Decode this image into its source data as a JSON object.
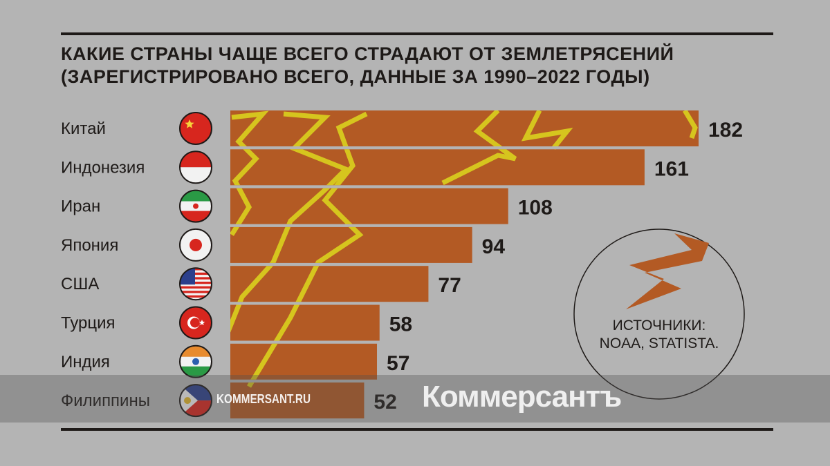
{
  "chart_data": {
    "type": "bar",
    "orientation": "horizontal",
    "title": "Какие страны чаще всего страдают от землетрясений (зарегистрировано всего, данные за 1990–2022 годы)",
    "title_lines": [
      "Какие страны чаще всего страдают от землетрясений",
      "(зарегистрировано всего, данные за 1990–2022 годы)"
    ],
    "categories": [
      "Китай",
      "Индонезия",
      "Иран",
      "Япония",
      "США",
      "Турция",
      "Индия",
      "Филиппины"
    ],
    "flags": [
      "china-flag-icon",
      "indonesia-flag-icon",
      "iran-flag-icon",
      "japan-flag-icon",
      "usa-flag-icon",
      "turkey-flag-icon",
      "india-flag-icon",
      "philippines-flag-icon"
    ],
    "values": [
      182,
      161,
      108,
      94,
      77,
      58,
      57,
      52
    ],
    "xlim": [
      0,
      182
    ],
    "bar_color": "#b35a24",
    "accent_color": "#d6c51e",
    "source_lines": [
      "ИСТОЧНИКИ:",
      "NOAA, STATISTA."
    ]
  },
  "watermark": {
    "logo": "Коммерсантъ",
    "url": "KOMMERSANT.RU"
  }
}
